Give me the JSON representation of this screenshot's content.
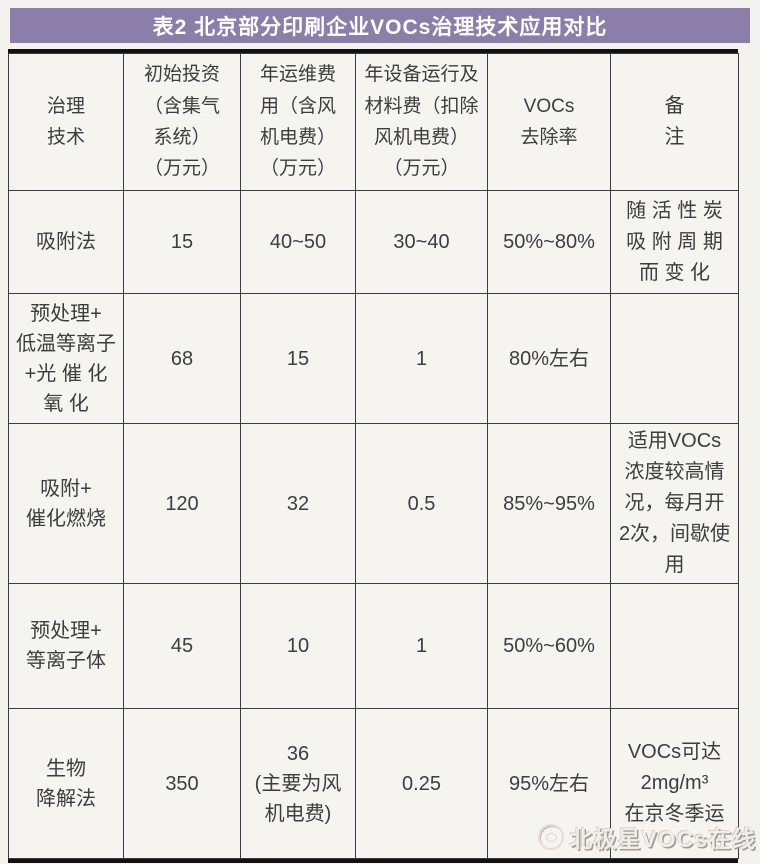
{
  "page": {
    "background_color": "#f4f2ef",
    "border_color": "#3c3c3c"
  },
  "title": {
    "text": "表2  北京部分印刷企业VOCs治理技术应用对比",
    "bar_color": "#8b7fa9",
    "text_color": "#ffffff"
  },
  "table": {
    "headers": [
      "治理\n技术",
      "初始投资\n（含集气\n系统）\n（万元）",
      "年运维费\n用（含风\n机电费）\n（万元）",
      "年设备运行及\n材料费（扣除\n风机电费）\n（万元）",
      "VOCs\n去除率",
      "备\n注"
    ],
    "rows": [
      {
        "cells": [
          "吸附法",
          "15",
          "40~50",
          "30~40",
          "50%~80%",
          "随 活 性 炭\n吸 附 周 期\n而 变 化"
        ]
      },
      {
        "cells": [
          "预处理+\n低温等离子\n+光 催 化\n氧 化",
          "68",
          "15",
          "1",
          "80%左右",
          ""
        ]
      },
      {
        "cells": [
          "吸附+\n催化燃烧",
          "120",
          "32",
          "0.5",
          "85%~95%",
          "适用VOCs\n浓度较高情\n况，每月开\n2次，间歇使\n用"
        ]
      },
      {
        "cells": [
          "预处理+\n等离子体",
          "45",
          "10",
          "1",
          "50%~60%",
          ""
        ]
      },
      {
        "cells": [
          "生物\n降解法",
          "350",
          "36\n(主要为风\n机电费)",
          "0.25",
          "95%左右",
          "VOCs可达\n2mg/m³\n在京冬季运"
        ]
      }
    ]
  },
  "watermark": {
    "text": "北极星VOCs在线",
    "logo": "circle-logo"
  }
}
